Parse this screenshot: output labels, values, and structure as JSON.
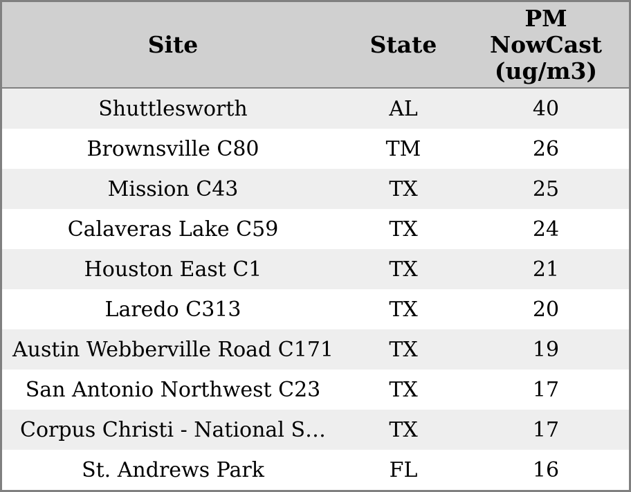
{
  "table": {
    "columns": [
      {
        "label": "Site"
      },
      {
        "label": "State"
      },
      {
        "label": "PM NowCast (ug/m3)",
        "lines": [
          "PM",
          "NowCast",
          "(ug/m3)"
        ]
      }
    ],
    "rows": [
      {
        "site": "Shuttlesworth",
        "state": "AL",
        "pm_nowcast": "40"
      },
      {
        "site": "Brownsville C80",
        "state": "TM",
        "pm_nowcast": "26"
      },
      {
        "site": "Mission C43",
        "state": "TX",
        "pm_nowcast": "25"
      },
      {
        "site": "Calaveras Lake C59",
        "state": "TX",
        "pm_nowcast": "24"
      },
      {
        "site": "Houston East C1",
        "state": "TX",
        "pm_nowcast": "21"
      },
      {
        "site": "Laredo C313",
        "state": "TX",
        "pm_nowcast": "20"
      },
      {
        "site": "Austin Webberville Road C171",
        "state": "TX",
        "pm_nowcast": "19"
      },
      {
        "site": "San Antonio Northwest C23",
        "state": "TX",
        "pm_nowcast": "17"
      },
      {
        "site": "Corpus Christi - National S…",
        "state": "TX",
        "pm_nowcast": "17"
      },
      {
        "site": "St. Andrews Park",
        "state": "FL",
        "pm_nowcast": "16"
      }
    ]
  },
  "chart_data": {
    "type": "table",
    "title": "",
    "columns": [
      "Site",
      "State",
      "PM NowCast (ug/m3)"
    ],
    "rows": [
      [
        "Shuttlesworth",
        "AL",
        40
      ],
      [
        "Brownsville C80",
        "TM",
        26
      ],
      [
        "Mission C43",
        "TX",
        25
      ],
      [
        "Calaveras Lake C59",
        "TX",
        24
      ],
      [
        "Houston East C1",
        "TX",
        21
      ],
      [
        "Laredo C313",
        "TX",
        20
      ],
      [
        "Austin Webberville Road C171",
        "TX",
        19
      ],
      [
        "San Antonio Northwest C23",
        "TX",
        17
      ],
      [
        "Corpus Christi - National S…",
        "TX",
        17
      ],
      [
        "St. Andrews Park",
        "FL",
        16
      ]
    ],
    "value_unit": "ug/m3",
    "layout": "zebra-striped table, all cells center-aligned, 3-line wrapped header on value column"
  },
  "colors": {
    "border": "#808080",
    "header_bg": "#d0d0d0",
    "row_alt_bg": "#eeeeee",
    "row_bg": "#ffffff",
    "text": "#000000"
  }
}
